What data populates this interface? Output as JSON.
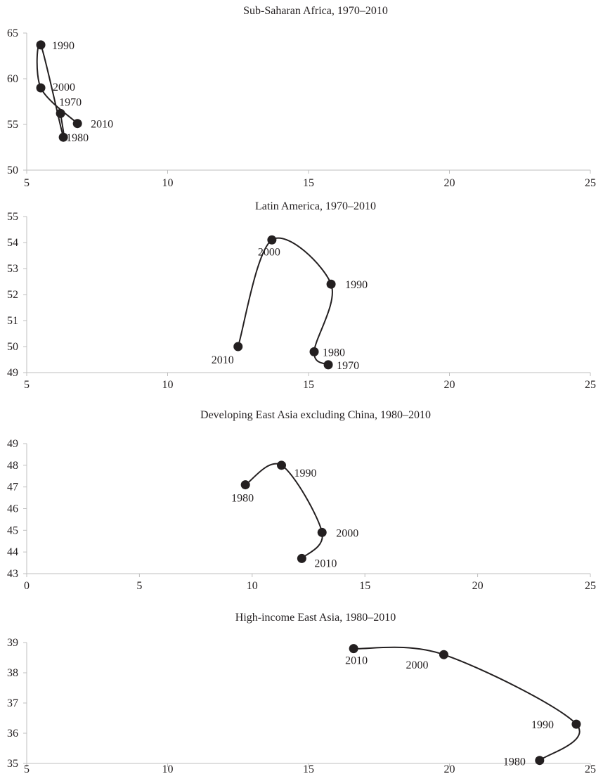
{
  "chart_data": [
    {
      "type": "scatter",
      "title": "Sub-Saharan Africa, 1970–2010",
      "xlim": [
        5,
        25
      ],
      "ylim": [
        50,
        65
      ],
      "xticks": [
        "5",
        "10",
        "15",
        "20",
        "25"
      ],
      "yticks": [
        "50",
        "55",
        "60",
        "65"
      ],
      "grid": false,
      "line_color": "#231f20",
      "points": [
        {
          "label": "1970",
          "x": 6.2,
          "y": 56.2
        },
        {
          "label": "1980",
          "x": 6.3,
          "y": 53.6
        },
        {
          "label": "1990",
          "x": 5.5,
          "y": 63.7
        },
        {
          "label": "2000",
          "x": 5.5,
          "y": 59.0
        },
        {
          "label": "2010",
          "x": 6.8,
          "y": 55.1
        }
      ]
    },
    {
      "type": "scatter",
      "title": "Latin America, 1970–2010",
      "xlim": [
        5,
        25
      ],
      "ylim": [
        49,
        55
      ],
      "xticks": [
        "5",
        "10",
        "15",
        "20",
        "25"
      ],
      "yticks": [
        "49",
        "50",
        "51",
        "52",
        "53",
        "54",
        "55"
      ],
      "grid": false,
      "line_color": "#231f20",
      "points": [
        {
          "label": "1970",
          "x": 15.7,
          "y": 49.3
        },
        {
          "label": "1980",
          "x": 15.2,
          "y": 49.8
        },
        {
          "label": "1990",
          "x": 15.8,
          "y": 52.4
        },
        {
          "label": "2000",
          "x": 13.7,
          "y": 54.1
        },
        {
          "label": "2010",
          "x": 12.5,
          "y": 50.0
        }
      ]
    },
    {
      "type": "scatter",
      "title": "Developing East Asia excluding China, 1980–2010",
      "xlim": [
        0,
        25
      ],
      "ylim": [
        43,
        49
      ],
      "xticks": [
        "0",
        "5",
        "10",
        "15",
        "20",
        "25"
      ],
      "yticks": [
        "43",
        "44",
        "45",
        "46",
        "47",
        "48",
        "49"
      ],
      "grid": false,
      "line_color": "#231f20",
      "points": [
        {
          "label": "1980",
          "x": 9.7,
          "y": 47.1
        },
        {
          "label": "1990",
          "x": 11.3,
          "y": 48.0
        },
        {
          "label": "2000",
          "x": 13.1,
          "y": 44.9
        },
        {
          "label": "2010",
          "x": 12.2,
          "y": 43.7
        }
      ]
    },
    {
      "type": "scatter",
      "title": "High-income East Asia, 1980–2010",
      "xlim": [
        5,
        25
      ],
      "ylim": [
        35,
        39
      ],
      "xticks": [
        "5",
        "10",
        "15",
        "20",
        "25"
      ],
      "yticks": [
        "35",
        "36",
        "37",
        "38",
        "39"
      ],
      "grid": false,
      "line_color": "#231f20",
      "points": [
        {
          "label": "1980",
          "x": 23.2,
          "y": 35.1
        },
        {
          "label": "1990",
          "x": 24.5,
          "y": 36.3
        },
        {
          "label": "2000",
          "x": 19.8,
          "y": 38.6
        },
        {
          "label": "2010",
          "x": 16.6,
          "y": 38.8
        }
      ]
    }
  ]
}
